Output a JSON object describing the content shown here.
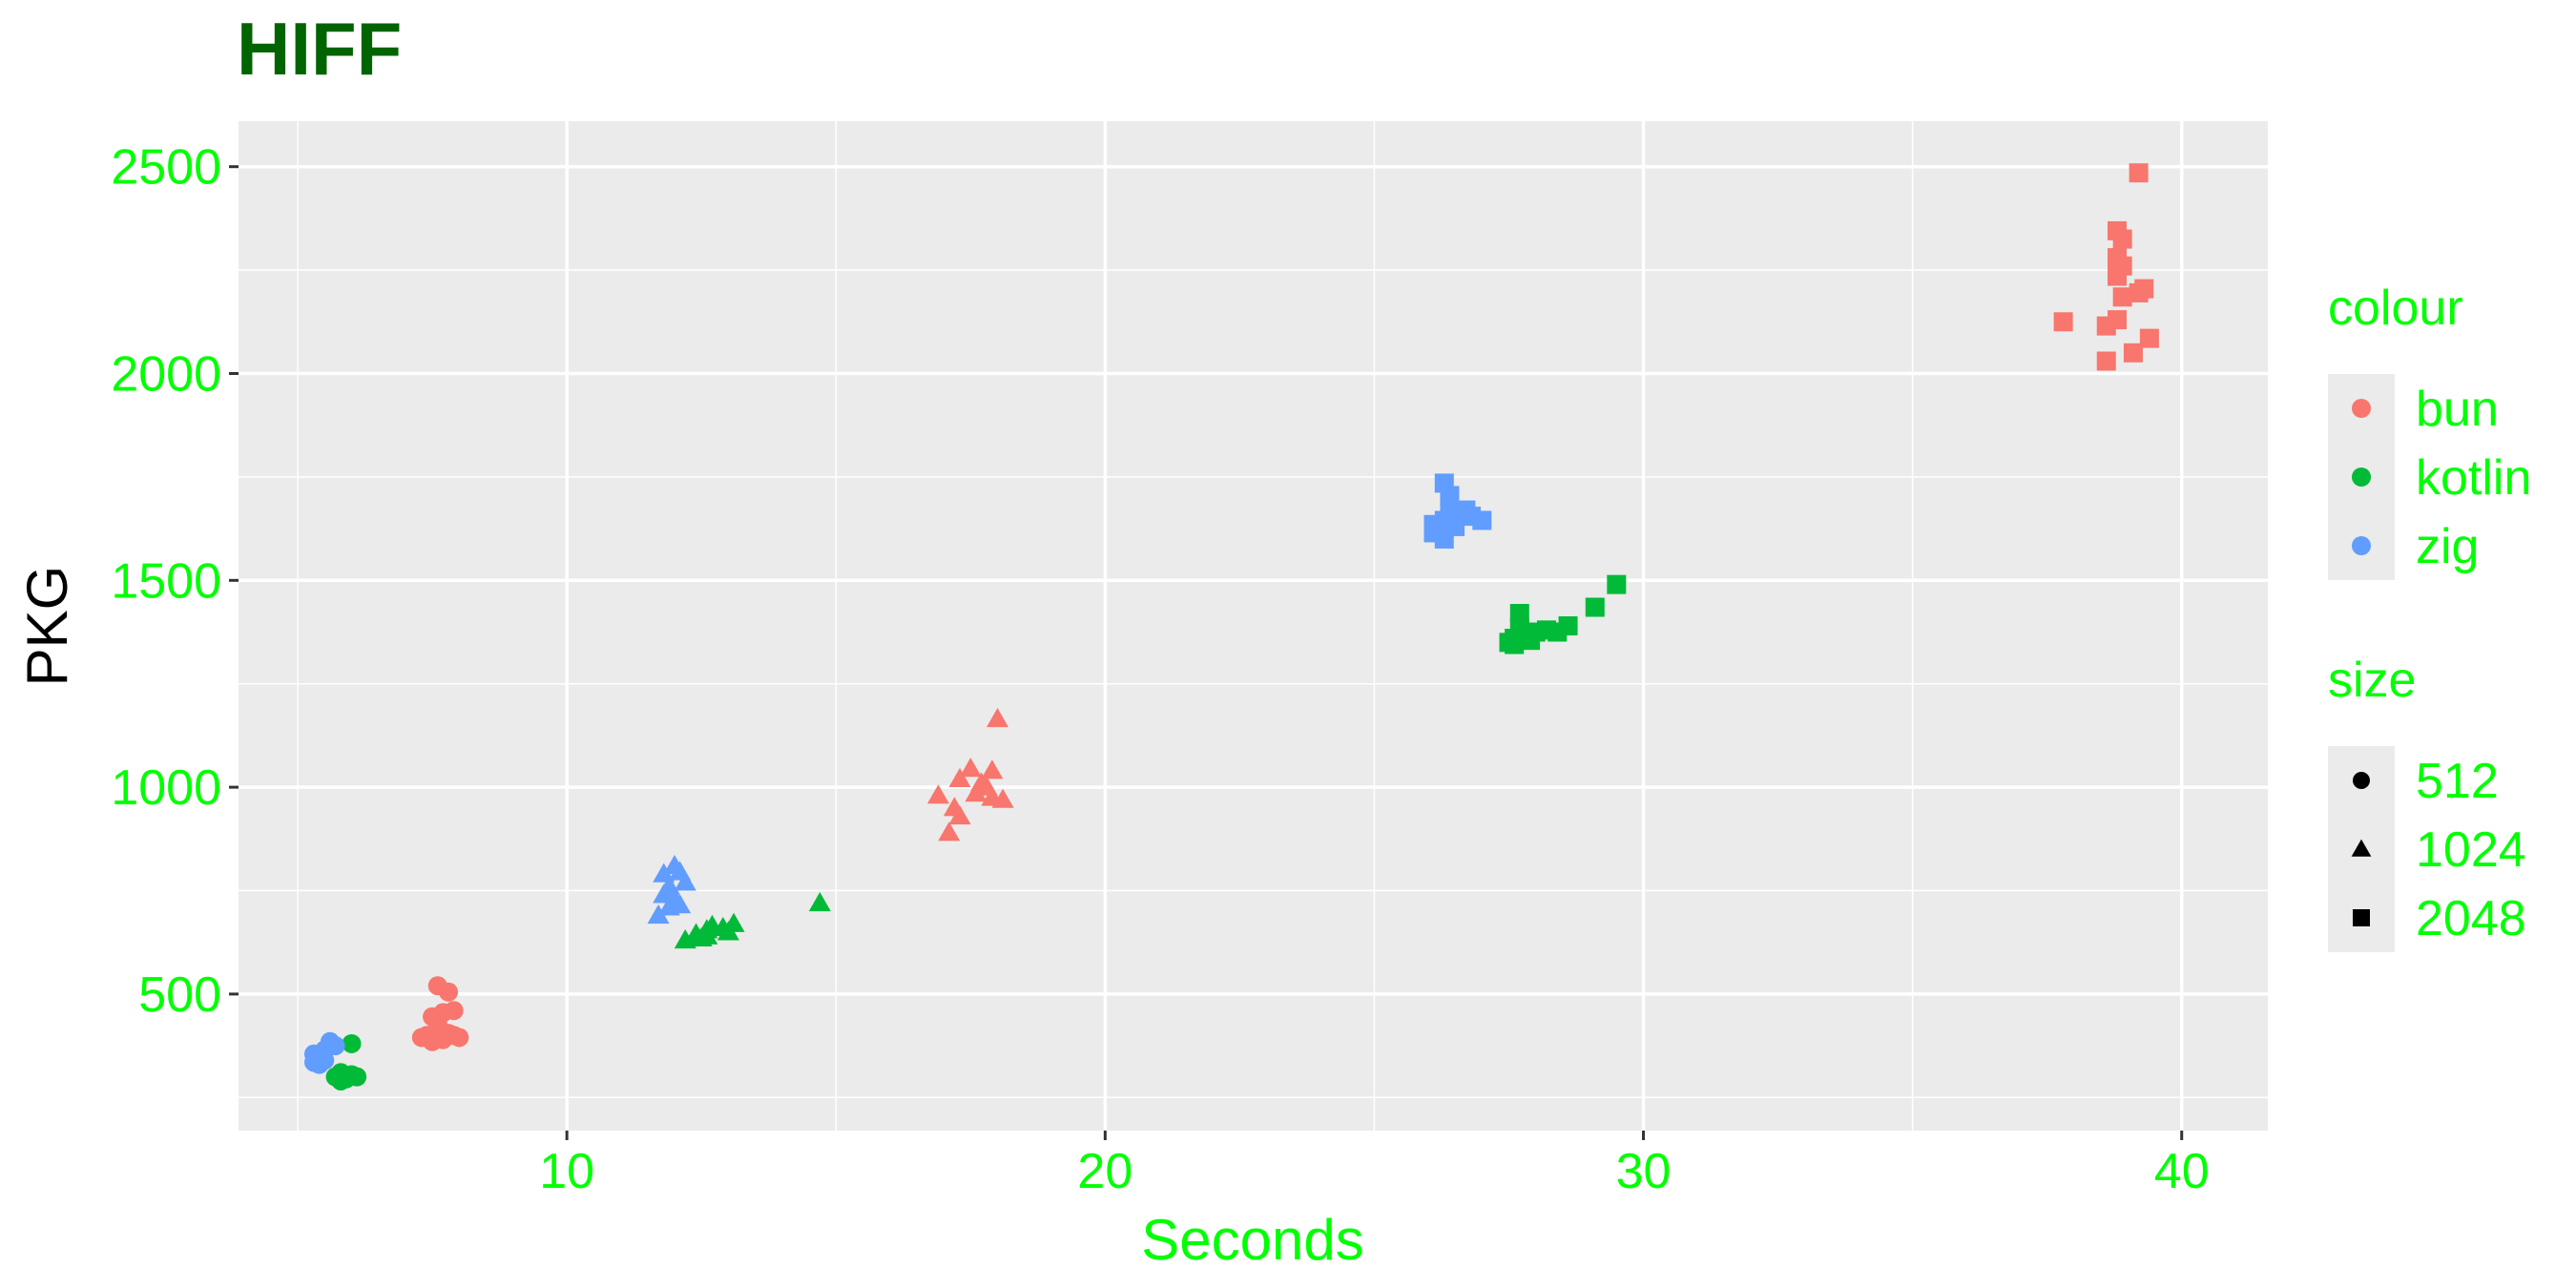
{
  "chart_data": {
    "type": "scatter",
    "title": "HIFF",
    "xlabel": "Seconds",
    "ylabel": "PKG",
    "xlim": [
      3.9,
      41.6
    ],
    "ylim": [
      170,
      2610
    ],
    "x_ticks": [
      10,
      20,
      30,
      40
    ],
    "y_ticks": [
      500,
      1000,
      1500,
      2000,
      2500
    ],
    "grid": true,
    "legend_position": "right",
    "colors": {
      "bun": "#F8766D",
      "kotlin": "#00BA38",
      "zig": "#619CFF",
      "title": "#006400",
      "tick_text": "#00FF00",
      "panel_bg": "#EBEBEB"
    },
    "legends": [
      {
        "title": "colour",
        "entries": [
          {
            "label": "bun",
            "color": "#F8766D"
          },
          {
            "label": "kotlin",
            "color": "#00BA38"
          },
          {
            "label": "zig",
            "color": "#619CFF"
          }
        ]
      },
      {
        "title": "size",
        "entries": [
          {
            "label": "512",
            "shape": "circle"
          },
          {
            "label": "1024",
            "shape": "triangle"
          },
          {
            "label": "2048",
            "shape": "square"
          }
        ]
      }
    ],
    "series": [
      {
        "name": "bun",
        "size": "512",
        "shape": "circle",
        "color": "#F8766D",
        "points": [
          [
            7.6,
            520
          ],
          [
            7.8,
            505
          ],
          [
            7.7,
            455
          ],
          [
            7.9,
            460
          ],
          [
            7.5,
            445
          ],
          [
            7.6,
            410
          ],
          [
            7.4,
            400
          ],
          [
            7.3,
            395
          ],
          [
            7.5,
            385
          ],
          [
            7.7,
            390
          ],
          [
            7.9,
            400
          ],
          [
            8.0,
            395
          ],
          [
            7.8,
            405
          ],
          [
            7.6,
            430
          ]
        ]
      },
      {
        "name": "bun",
        "size": "1024",
        "shape": "triangle",
        "color": "#F8766D",
        "points": [
          [
            18.0,
            1165
          ],
          [
            17.5,
            1045
          ],
          [
            17.9,
            1040
          ],
          [
            17.3,
            1020
          ],
          [
            17.7,
            1010
          ],
          [
            16.9,
            980
          ],
          [
            17.6,
            985
          ],
          [
            17.9,
            975
          ],
          [
            18.1,
            970
          ],
          [
            17.2,
            950
          ],
          [
            17.3,
            930
          ],
          [
            17.1,
            890
          ],
          [
            17.8,
            1000
          ]
        ]
      },
      {
        "name": "bun",
        "size": "2048",
        "shape": "square",
        "color": "#F8766D",
        "points": [
          [
            39.2,
            2485
          ],
          [
            38.8,
            2345
          ],
          [
            38.9,
            2325
          ],
          [
            38.8,
            2280
          ],
          [
            38.9,
            2260
          ],
          [
            38.8,
            2235
          ],
          [
            39.3,
            2205
          ],
          [
            39.2,
            2195
          ],
          [
            38.9,
            2185
          ],
          [
            37.8,
            2125
          ],
          [
            38.8,
            2130
          ],
          [
            38.6,
            2115
          ],
          [
            39.4,
            2085
          ],
          [
            39.1,
            2050
          ],
          [
            38.6,
            2030
          ]
        ]
      },
      {
        "name": "kotlin",
        "size": "512",
        "shape": "circle",
        "color": "#00BA38",
        "points": [
          [
            6.0,
            380
          ],
          [
            5.7,
            300
          ],
          [
            5.9,
            295
          ],
          [
            6.0,
            305
          ],
          [
            5.8,
            290
          ],
          [
            6.1,
            300
          ],
          [
            5.8,
            310
          ]
        ]
      },
      {
        "name": "kotlin",
        "size": "1024",
        "shape": "triangle",
        "color": "#00BA38",
        "points": [
          [
            14.7,
            720
          ],
          [
            13.1,
            670
          ],
          [
            12.7,
            665
          ],
          [
            12.9,
            660
          ],
          [
            12.6,
            655
          ],
          [
            13.0,
            650
          ],
          [
            12.4,
            645
          ],
          [
            12.6,
            640
          ],
          [
            12.2,
            630
          ],
          [
            12.5,
            635
          ]
        ]
      },
      {
        "name": "kotlin",
        "size": "2048",
        "shape": "square",
        "color": "#00BA38",
        "points": [
          [
            29.5,
            1490
          ],
          [
            29.1,
            1435
          ],
          [
            28.6,
            1390
          ],
          [
            27.7,
            1420
          ],
          [
            28.4,
            1375
          ],
          [
            28.0,
            1375
          ],
          [
            27.8,
            1365
          ],
          [
            27.6,
            1360
          ],
          [
            27.5,
            1350
          ],
          [
            27.6,
            1345
          ],
          [
            27.9,
            1355
          ],
          [
            28.2,
            1380
          ],
          [
            27.7,
            1385
          ]
        ]
      },
      {
        "name": "zig",
        "size": "512",
        "shape": "circle",
        "color": "#619CFF",
        "points": [
          [
            5.6,
            385
          ],
          [
            5.7,
            375
          ],
          [
            5.5,
            365
          ],
          [
            5.3,
            355
          ],
          [
            5.4,
            345
          ],
          [
            5.5,
            340
          ],
          [
            5.3,
            335
          ],
          [
            5.4,
            330
          ]
        ]
      },
      {
        "name": "zig",
        "size": "1024",
        "shape": "triangle",
        "color": "#619CFF",
        "points": [
          [
            12.0,
            810
          ],
          [
            12.1,
            795
          ],
          [
            11.8,
            790
          ],
          [
            12.2,
            770
          ],
          [
            11.9,
            760
          ],
          [
            11.8,
            740
          ],
          [
            12.0,
            730
          ],
          [
            11.9,
            710
          ],
          [
            11.7,
            690
          ],
          [
            12.1,
            715
          ]
        ]
      },
      {
        "name": "zig",
        "size": "2048",
        "shape": "square",
        "color": "#619CFF",
        "points": [
          [
            26.3,
            1735
          ],
          [
            26.4,
            1705
          ],
          [
            26.7,
            1670
          ],
          [
            26.4,
            1665
          ],
          [
            26.8,
            1655
          ],
          [
            27.0,
            1645
          ],
          [
            26.3,
            1645
          ],
          [
            26.1,
            1635
          ],
          [
            26.5,
            1630
          ],
          [
            26.2,
            1625
          ],
          [
            26.1,
            1615
          ],
          [
            26.3,
            1600
          ]
        ]
      }
    ]
  }
}
